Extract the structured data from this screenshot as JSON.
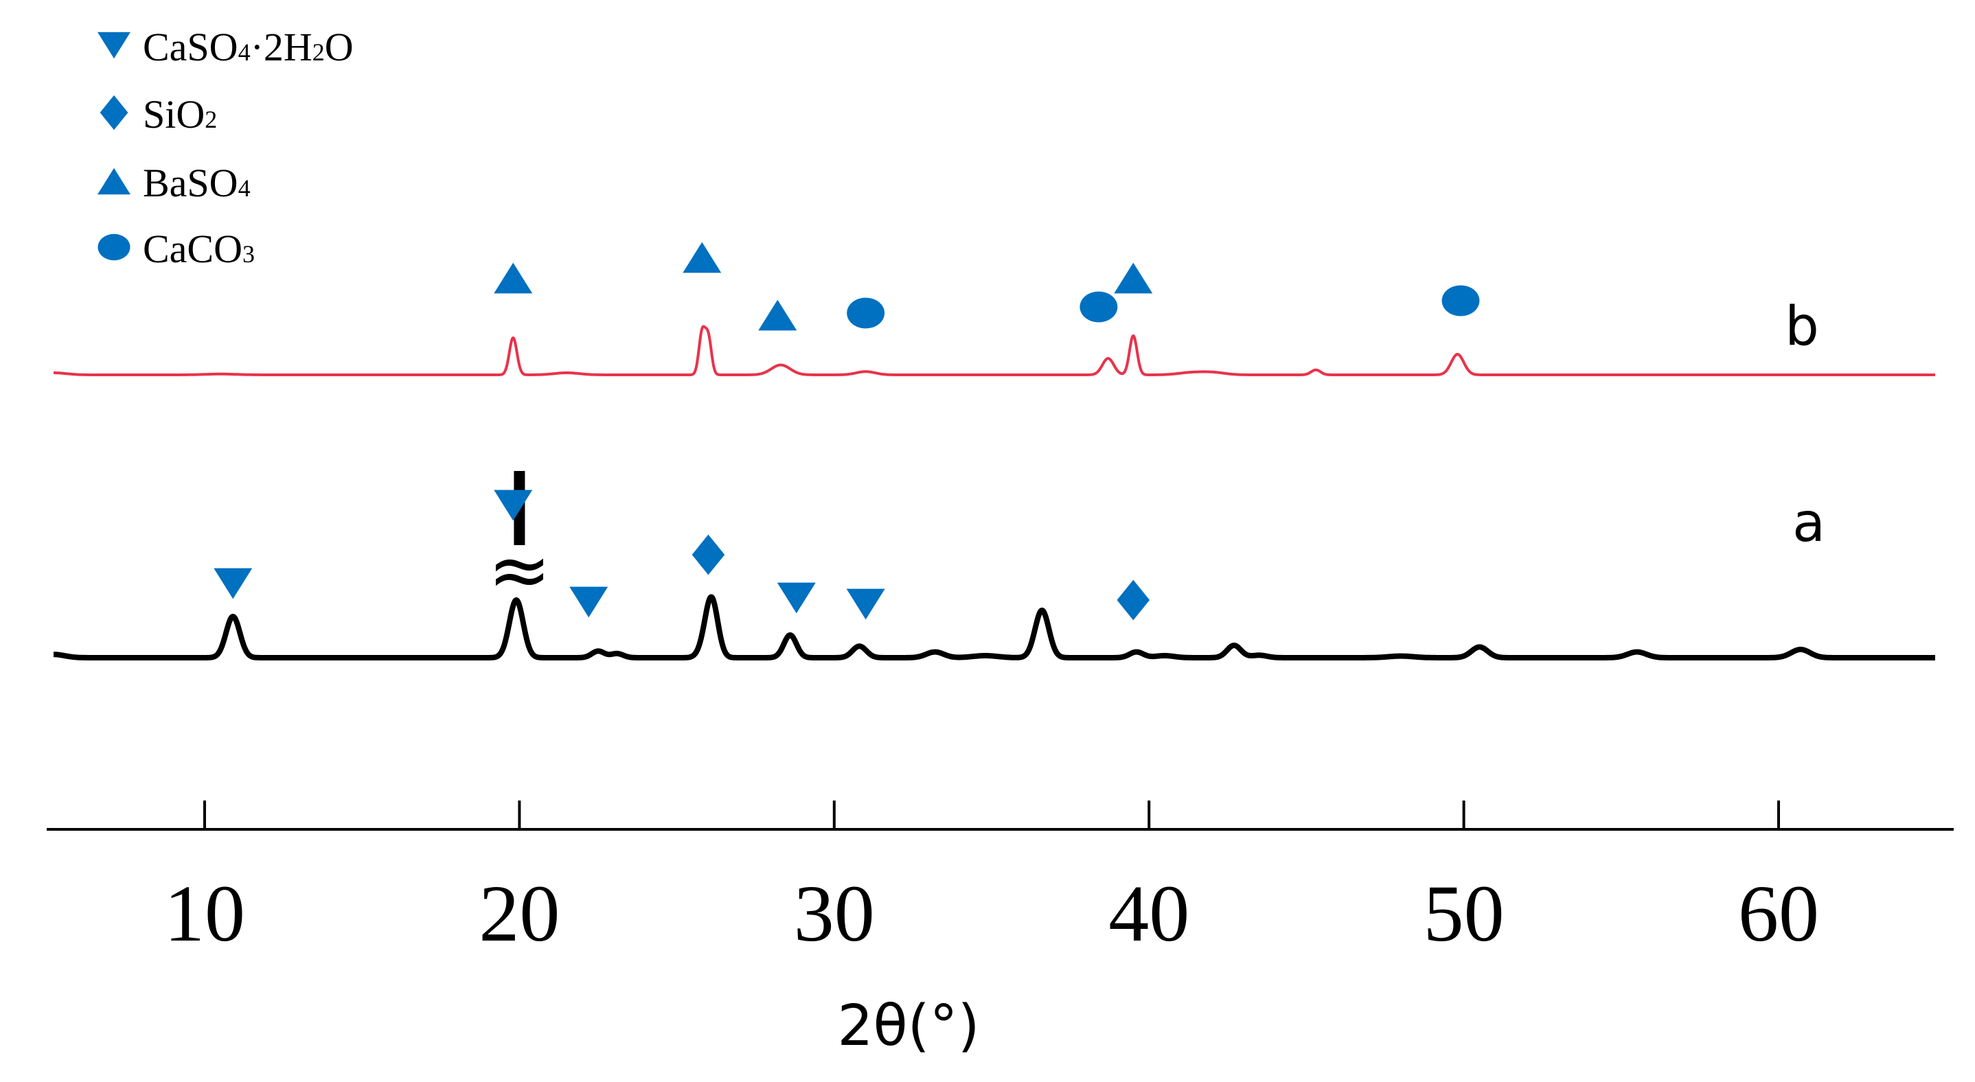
{
  "chart_data": {
    "type": "line",
    "xlabel": "2θ(°)",
    "ylabel": "",
    "xlim": [
      5,
      65.5
    ],
    "ticks": [
      10,
      20,
      30,
      40,
      50,
      60
    ],
    "tick_labels": [
      "10",
      "20",
      "30",
      "40",
      "50",
      "60"
    ],
    "legend": {
      "placement": "top-left",
      "entries": [
        {
          "id": "gypsum",
          "parts": [
            {
              "t": "CaSO"
            },
            {
              "t": "4",
              "sub": true
            },
            {
              "t": "·2H"
            },
            {
              "t": "2",
              "sub": true
            },
            {
              "t": "O"
            }
          ],
          "marker": "triangle-down"
        },
        {
          "id": "silica",
          "parts": [
            {
              "t": "SiO"
            },
            {
              "t": "2",
              "sub": true
            }
          ],
          "marker": "diamond"
        },
        {
          "id": "barite",
          "parts": [
            {
              "t": "BaSO"
            },
            {
              "t": "4",
              "sub": true
            }
          ],
          "marker": "triangle-up"
        },
        {
          "id": "calcite",
          "parts": [
            {
              "t": "CaCO"
            },
            {
              "t": "3",
              "sub": true
            }
          ],
          "marker": "circle"
        }
      ]
    },
    "series": [
      {
        "name": "a",
        "color": "#000000",
        "baseline": 0,
        "axis_break_at": 20,
        "peaks": [
          {
            "x": 5.2,
            "h": 0.08,
            "w": 0.35
          },
          {
            "x": 10.9,
            "h": 1.0,
            "w": 0.22
          },
          {
            "x": 19.9,
            "h": 1.4,
            "w": 0.22
          },
          {
            "x": 22.5,
            "h": 0.16,
            "w": 0.2
          },
          {
            "x": 23.1,
            "h": 0.1,
            "w": 0.2
          },
          {
            "x": 25.8,
            "h": 0.1,
            "w": 0.18
          },
          {
            "x": 26.1,
            "h": 1.45,
            "w": 0.2
          },
          {
            "x": 28.6,
            "h": 0.55,
            "w": 0.2
          },
          {
            "x": 30.8,
            "h": 0.28,
            "w": 0.22
          },
          {
            "x": 33.2,
            "h": 0.14,
            "w": 0.28
          },
          {
            "x": 34.8,
            "h": 0.05,
            "w": 0.4
          },
          {
            "x": 36.6,
            "h": 1.15,
            "w": 0.22
          },
          {
            "x": 39.6,
            "h": 0.14,
            "w": 0.22
          },
          {
            "x": 40.5,
            "h": 0.05,
            "w": 0.3
          },
          {
            "x": 42.7,
            "h": 0.3,
            "w": 0.22
          },
          {
            "x": 43.5,
            "h": 0.06,
            "w": 0.25
          },
          {
            "x": 48.0,
            "h": 0.04,
            "w": 0.4
          },
          {
            "x": 50.5,
            "h": 0.26,
            "w": 0.26
          },
          {
            "x": 55.5,
            "h": 0.14,
            "w": 0.3
          },
          {
            "x": 60.7,
            "h": 0.2,
            "w": 0.3
          }
        ],
        "markers": [
          {
            "x": 10.9,
            "h": 1.0,
            "type": "triangle-down"
          },
          {
            "x": 19.8,
            "h": 2.9,
            "type": "triangle-down"
          },
          {
            "x": 22.2,
            "h": 0.55,
            "type": "triangle-down"
          },
          {
            "x": 26.0,
            "h": 1.7,
            "type": "diamond"
          },
          {
            "x": 28.8,
            "h": 0.65,
            "type": "triangle-down"
          },
          {
            "x": 31.0,
            "h": 0.5,
            "type": "triangle-down"
          },
          {
            "x": 39.5,
            "h": 0.6,
            "type": "diamond"
          }
        ]
      },
      {
        "name": "b",
        "color": "#e8334a",
        "baseline": 0,
        "peaks": [
          {
            "x": 5.2,
            "h": 0.05,
            "w": 0.4
          },
          {
            "x": 10.5,
            "h": 0.02,
            "w": 0.5
          },
          {
            "x": 19.8,
            "h": 0.9,
            "w": 0.12
          },
          {
            "x": 21.5,
            "h": 0.05,
            "w": 0.4
          },
          {
            "x": 25.8,
            "h": 1.0,
            "w": 0.1
          },
          {
            "x": 26.0,
            "h": 0.9,
            "w": 0.1
          },
          {
            "x": 28.3,
            "h": 0.24,
            "w": 0.3
          },
          {
            "x": 31.0,
            "h": 0.08,
            "w": 0.3
          },
          {
            "x": 38.7,
            "h": 0.4,
            "w": 0.18
          },
          {
            "x": 39.5,
            "h": 0.95,
            "w": 0.12
          },
          {
            "x": 41.3,
            "h": 0.05,
            "w": 0.4
          },
          {
            "x": 42.0,
            "h": 0.06,
            "w": 0.4
          },
          {
            "x": 45.3,
            "h": 0.12,
            "w": 0.15
          },
          {
            "x": 49.8,
            "h": 0.5,
            "w": 0.2
          }
        ],
        "markers": [
          {
            "x": 19.8,
            "h": 1.55,
            "type": "triangle-up"
          },
          {
            "x": 25.8,
            "h": 2.05,
            "type": "triangle-up"
          },
          {
            "x": 28.2,
            "h": 0.65,
            "type": "triangle-up"
          },
          {
            "x": 31.0,
            "h": 0.7,
            "type": "circle"
          },
          {
            "x": 38.4,
            "h": 0.85,
            "type": "circle"
          },
          {
            "x": 39.5,
            "h": 1.55,
            "type": "triangle-up"
          },
          {
            "x": 49.9,
            "h": 1.0,
            "type": "circle"
          }
        ]
      }
    ],
    "marker_color": "#0070c0"
  }
}
